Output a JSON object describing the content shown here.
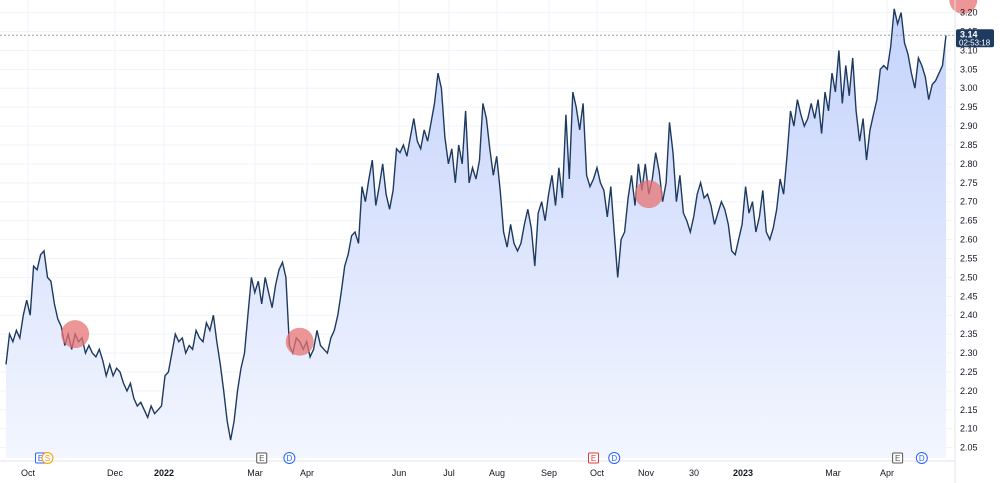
{
  "chart_data": {
    "type": "area",
    "title": "",
    "xlabel": "",
    "ylabel": "",
    "ylim": [
      2.02,
      3.22
    ],
    "y_ticks": [
      "2.05",
      "2.10",
      "2.15",
      "2.20",
      "2.25",
      "2.30",
      "2.35",
      "2.40",
      "2.45",
      "2.50",
      "2.55",
      "2.60",
      "2.65",
      "2.70",
      "2.75",
      "2.80",
      "2.85",
      "2.90",
      "2.95",
      "3.00",
      "3.05",
      "3.10",
      "3.15",
      "3.20"
    ],
    "x_ticks": [
      {
        "label": "Oct",
        "bold": false
      },
      {
        "label": "Dec",
        "bold": false
      },
      {
        "label": "2022",
        "bold": true
      },
      {
        "label": "Mar",
        "bold": false
      },
      {
        "label": "Apr",
        "bold": false
      },
      {
        "label": "Jun",
        "bold": false
      },
      {
        "label": "Jul",
        "bold": false
      },
      {
        "label": "Aug",
        "bold": false
      },
      {
        "label": "Sep",
        "bold": false
      },
      {
        "label": "Oct",
        "bold": false
      },
      {
        "label": "Nov",
        "bold": false
      },
      {
        "label": "30",
        "bold": false
      },
      {
        "label": "2023",
        "bold": true
      },
      {
        "label": "Mar",
        "bold": false
      },
      {
        "label": "Apr",
        "bold": false
      }
    ],
    "grid": true,
    "colors": {
      "line": "#1e3a5f",
      "fill_top": "#c5d3fb",
      "fill_bottom": "#f3f6ff",
      "grid": "#f0f3fa",
      "highlight": "#e57373",
      "badge": "#1e3a5f",
      "dotted": "#9aa0a8"
    },
    "last_value": {
      "price": "3.14",
      "countdown": "02:53:18"
    },
    "series": [
      {
        "values": [
          2.27,
          2.35,
          2.33,
          2.36,
          2.34,
          2.4,
          2.44,
          2.4,
          2.53,
          2.52,
          2.56,
          2.57,
          2.5,
          2.49,
          2.43,
          2.39,
          2.37,
          2.32,
          2.35,
          2.31,
          2.35,
          2.33,
          2.34,
          2.3,
          2.32,
          2.3,
          2.29,
          2.31,
          2.28,
          2.24,
          2.27,
          2.24,
          2.26,
          2.25,
          2.22,
          2.2,
          2.22,
          2.18,
          2.16,
          2.17,
          2.15,
          2.13,
          2.16,
          2.14,
          2.15,
          2.16,
          2.24,
          2.25,
          2.3,
          2.35,
          2.33,
          2.34,
          2.3,
          2.32,
          2.31,
          2.36,
          2.34,
          2.33,
          2.38,
          2.36,
          2.4,
          2.33,
          2.27,
          2.2,
          2.12,
          2.07,
          2.12,
          2.2,
          2.26,
          2.3,
          2.4,
          2.5,
          2.46,
          2.49,
          2.43,
          2.5,
          2.46,
          2.42,
          2.48,
          2.52,
          2.54,
          2.5,
          2.32,
          2.3,
          2.34,
          2.33,
          2.31,
          2.33,
          2.29,
          2.31,
          2.36,
          2.32,
          2.31,
          2.3,
          2.34,
          2.36,
          2.4,
          2.46,
          2.53,
          2.56,
          2.61,
          2.62,
          2.59,
          2.74,
          2.7,
          2.76,
          2.81,
          2.69,
          2.74,
          2.8,
          2.72,
          2.68,
          2.73,
          2.84,
          2.83,
          2.85,
          2.82,
          2.87,
          2.92,
          2.86,
          2.84,
          2.89,
          2.86,
          2.91,
          2.96,
          3.04,
          3.0,
          2.87,
          2.8,
          2.84,
          2.75,
          2.85,
          2.8,
          2.94,
          2.75,
          2.79,
          2.76,
          2.81,
          2.96,
          2.92,
          2.84,
          2.77,
          2.82,
          2.73,
          2.62,
          2.58,
          2.64,
          2.59,
          2.57,
          2.59,
          2.64,
          2.68,
          2.63,
          2.53,
          2.67,
          2.7,
          2.65,
          2.72,
          2.77,
          2.69,
          2.79,
          2.71,
          2.93,
          2.76,
          2.99,
          2.95,
          2.89,
          2.96,
          2.77,
          2.74,
          2.76,
          2.79,
          2.75,
          2.73,
          2.66,
          2.74,
          2.62,
          2.5,
          2.6,
          2.62,
          2.71,
          2.77,
          2.69,
          2.8,
          2.73,
          2.8,
          2.72,
          2.76,
          2.83,
          2.78,
          2.7,
          2.75,
          2.91,
          2.83,
          2.7,
          2.77,
          2.67,
          2.65,
          2.62,
          2.66,
          2.72,
          2.75,
          2.71,
          2.72,
          2.69,
          2.64,
          2.67,
          2.7,
          2.68,
          2.64,
          2.57,
          2.56,
          2.6,
          2.64,
          2.74,
          2.67,
          2.7,
          2.62,
          2.66,
          2.73,
          2.62,
          2.6,
          2.63,
          2.68,
          2.76,
          2.72,
          2.82,
          2.94,
          2.9,
          2.97,
          2.93,
          2.9,
          2.92,
          2.96,
          2.92,
          2.97,
          2.88,
          2.99,
          2.94,
          3.04,
          2.99,
          3.1,
          2.96,
          3.06,
          2.98,
          3.08,
          2.94,
          2.86,
          2.92,
          2.81,
          2.89,
          2.93,
          2.97,
          3.05,
          3.06,
          3.05,
          3.11,
          3.21,
          3.17,
          3.2,
          3.12,
          3.09,
          3.04,
          3.0,
          3.08,
          3.06,
          3.03,
          2.97,
          3.01,
          3.02,
          3.04,
          3.06,
          3.14
        ]
      }
    ],
    "highlights": [
      {
        "index": 20
      },
      {
        "index": 85
      },
      {
        "index": 186
      },
      {
        "index": 277
      }
    ],
    "events": [
      {
        "letter": "E",
        "kind": "earnings",
        "color": "#2962ff",
        "x_index": 10
      },
      {
        "letter": "S",
        "kind": "split",
        "color": "#ff9800",
        "x_index": 12
      },
      {
        "letter": "E",
        "kind": "earnings",
        "color": "#555555",
        "x_index": 74
      },
      {
        "letter": "D",
        "kind": "dividend",
        "color": "#2962ff",
        "x_index": 82
      },
      {
        "letter": "E",
        "kind": "earnings",
        "color": "#e53935",
        "x_index": 170
      },
      {
        "letter": "D",
        "kind": "dividend",
        "color": "#2962ff",
        "x_index": 176
      },
      {
        "letter": "E",
        "kind": "earnings",
        "color": "#555555",
        "x_index": 258
      },
      {
        "letter": "D",
        "kind": "dividend",
        "color": "#2962ff",
        "x_index": 265
      },
      {
        "letter": "⚡",
        "kind": "news",
        "color": "#9c27b0",
        "x_index": 297
      }
    ]
  }
}
